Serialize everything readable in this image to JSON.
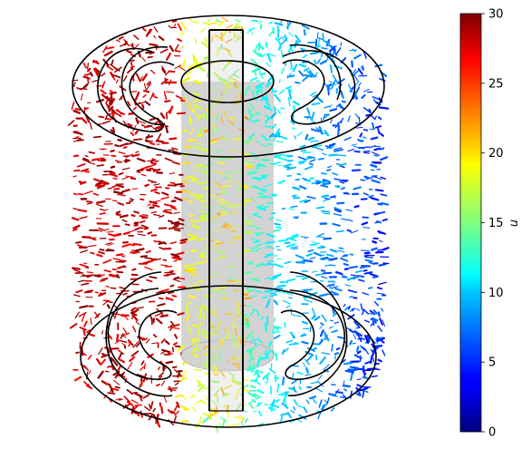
{
  "figure": {
    "description_free": true
  },
  "colorbar": {
    "label": "u",
    "min": 0,
    "max": 30,
    "colormap": "jet",
    "ticks": [
      "0",
      "5",
      "10",
      "15",
      "20",
      "25",
      "30"
    ]
  },
  "colors": {
    "jet": [
      "#00007f",
      "#0000ff",
      "#007fff",
      "#00ffff",
      "#7fff7f",
      "#ffff00",
      "#ff7f00",
      "#ff0000",
      "#7f0000"
    ],
    "cylinder_fill": "#d3d3d3",
    "outline": "#000000"
  }
}
